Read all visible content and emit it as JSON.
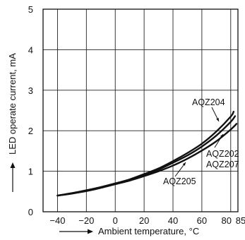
{
  "chart_data": {
    "type": "line",
    "xlabel": "Ambient temperature, °C",
    "ylabel": "LED operate current, mA",
    "xlim": [
      -50,
      85
    ],
    "ylim": [
      0,
      5
    ],
    "x_ticks": [
      -40,
      -20,
      0,
      20,
      40,
      60,
      80,
      85
    ],
    "x_tick_labels": [
      "−40",
      "−20",
      "0",
      "20",
      "40",
      "60",
      "80",
      "85"
    ],
    "y_ticks": [
      0,
      1,
      2,
      3,
      4,
      5
    ],
    "y_tick_labels": [
      "0",
      "1",
      "2",
      "3",
      "4",
      "5"
    ],
    "grid": true,
    "series": [
      {
        "name": "AQZ204",
        "x": [
          -40,
          -30,
          -20,
          -10,
          0,
          10,
          20,
          30,
          40,
          50,
          60,
          70,
          80,
          82
        ],
        "y": [
          0.4,
          0.46,
          0.53,
          0.61,
          0.7,
          0.8,
          0.93,
          1.07,
          1.25,
          1.45,
          1.68,
          1.98,
          2.35,
          2.47
        ]
      },
      {
        "name": "AQZ202 / AQZ207",
        "x": [
          -40,
          -30,
          -20,
          -10,
          0,
          10,
          20,
          30,
          40,
          50,
          60,
          70,
          80,
          83
        ],
        "y": [
          0.4,
          0.45,
          0.52,
          0.6,
          0.69,
          0.79,
          0.91,
          1.04,
          1.21,
          1.39,
          1.61,
          1.88,
          2.22,
          2.36
        ]
      },
      {
        "name": "AQZ205",
        "x": [
          -40,
          -30,
          -20,
          -10,
          0,
          10,
          20,
          30,
          40,
          50,
          60,
          70,
          80,
          84
        ],
        "y": [
          0.4,
          0.45,
          0.51,
          0.59,
          0.68,
          0.77,
          0.88,
          1.0,
          1.14,
          1.31,
          1.51,
          1.74,
          2.03,
          2.17
        ]
      }
    ],
    "annotations": [
      {
        "text": "AQZ204"
      },
      {
        "text": "AQZ202"
      },
      {
        "text": "AQZ207"
      },
      {
        "text": "AQZ205"
      }
    ]
  }
}
